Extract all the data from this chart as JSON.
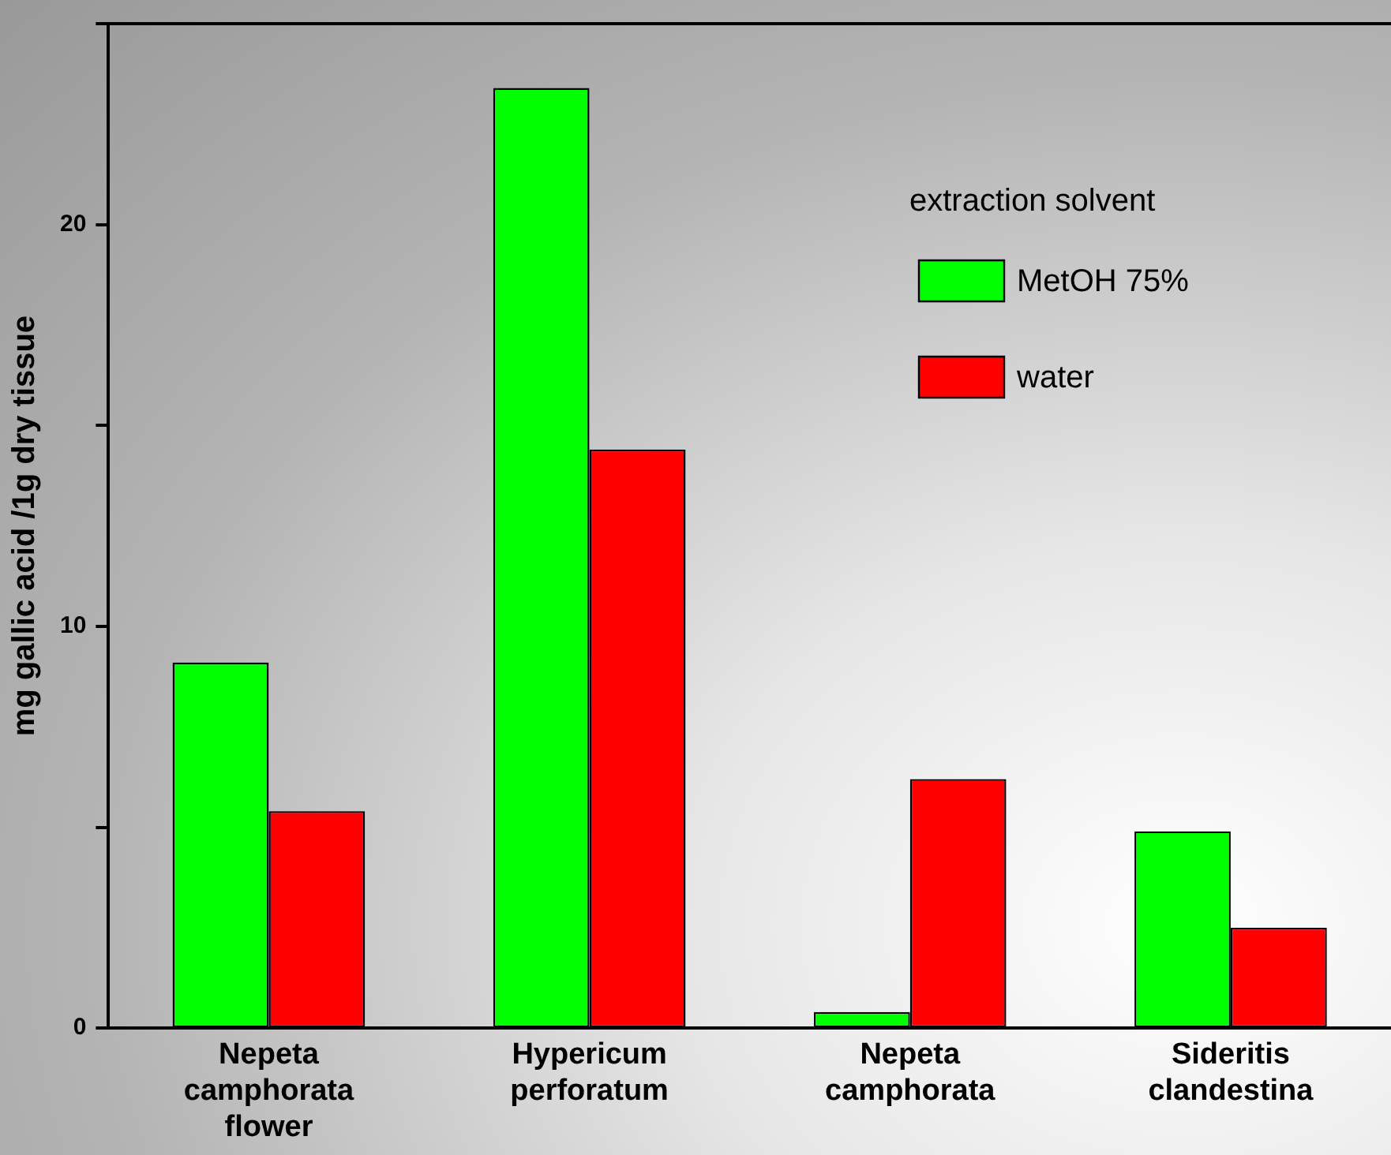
{
  "chart_data": {
    "type": "bar",
    "ylabel": "mg gallic acid /1g dry tissue",
    "legend_title": "extraction solvent",
    "legend": "top right",
    "categories": [
      "Nepeta camphorata flower",
      "Hypericum perforatum",
      "Nepeta camphorata",
      "Sideritis clandestina"
    ],
    "series": [
      {
        "name": "MetOH 75%",
        "color": "#00ff00",
        "values": [
          9.1,
          23.4,
          0.4,
          4.9
        ]
      },
      {
        "name": "water",
        "color": "#ff0000",
        "values": [
          5.4,
          14.4,
          6.2,
          2.5
        ]
      }
    ],
    "ylim": [
      0,
      25
    ],
    "yticks": [
      0,
      {
        "value": 5,
        "label": null
      },
      10,
      {
        "value": 15,
        "label": null
      },
      20,
      {
        "value": 25,
        "label": null
      }
    ],
    "grid": false
  }
}
